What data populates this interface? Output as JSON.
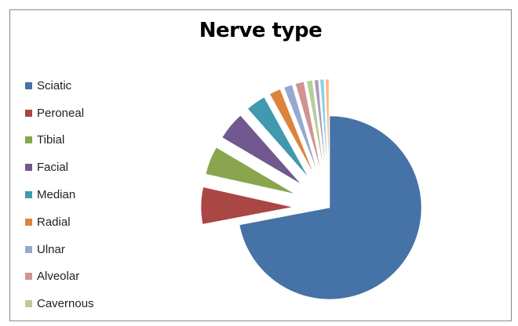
{
  "chart_data": {
    "type": "pie",
    "title": "Nerve type",
    "legend_position": "left",
    "exploded": true,
    "slices": [
      {
        "label": "Sciatic",
        "value": 72.0,
        "color": "#4572A7"
      },
      {
        "label": "Peroneal",
        "value": 6.5,
        "color": "#AA4643"
      },
      {
        "label": "Tibial",
        "value": 5.0,
        "color": "#89A54E"
      },
      {
        "label": "Facial",
        "value": 5.0,
        "color": "#71588F"
      },
      {
        "label": "Median",
        "value": 3.5,
        "color": "#4198AF"
      },
      {
        "label": "Radial",
        "value": 2.0,
        "color": "#DB843D"
      },
      {
        "label": "Ulnar",
        "value": 1.5,
        "color": "#93A9CF"
      },
      {
        "label": "Alveolar",
        "value": 1.5,
        "color": "#D19392"
      },
      {
        "label": "Cavernous",
        "value": 1.0,
        "color": "#B9CD96"
      },
      {
        "label": "",
        "value": 0.7,
        "color": "#A99BBD"
      },
      {
        "label": "",
        "value": 0.7,
        "color": "#8FD0E0"
      },
      {
        "label": "",
        "value": 0.6,
        "color": "#F5B981"
      }
    ]
  }
}
